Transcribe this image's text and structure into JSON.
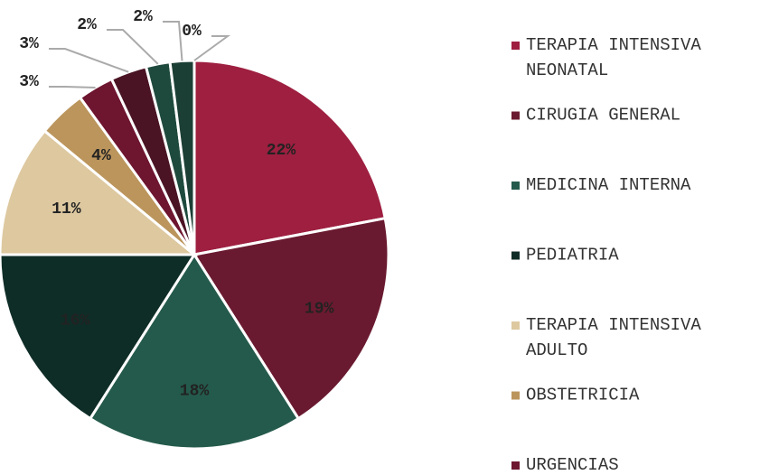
{
  "chart_data": {
    "type": "pie",
    "categories": [
      "TERAPIA INTENSIVA NEONATAL",
      "CIRUGIA GENERAL",
      "MEDICINA INTERNA",
      "PEDIATRIA",
      "TERAPIA INTENSIVA ADULTO",
      "OBSTETRICIA",
      "URGENCIAS",
      null,
      null,
      null,
      null
    ],
    "values": [
      22,
      19,
      18,
      16,
      11,
      4,
      3,
      3,
      2,
      2,
      0
    ],
    "value_labels": [
      "22%",
      "19%",
      "18%",
      "16%",
      "11%",
      "4%",
      "3%",
      "3%",
      "2%",
      "2%",
      "0%"
    ],
    "colors": [
      "#9e1f40",
      "#6a1a30",
      "#245a4b",
      "#0f2d27",
      "#ddc8a0",
      "#bb955c",
      "#6e1530",
      "#4a1424",
      "#1e4a3d",
      "#1c3f35",
      "#0d2420"
    ]
  }
}
